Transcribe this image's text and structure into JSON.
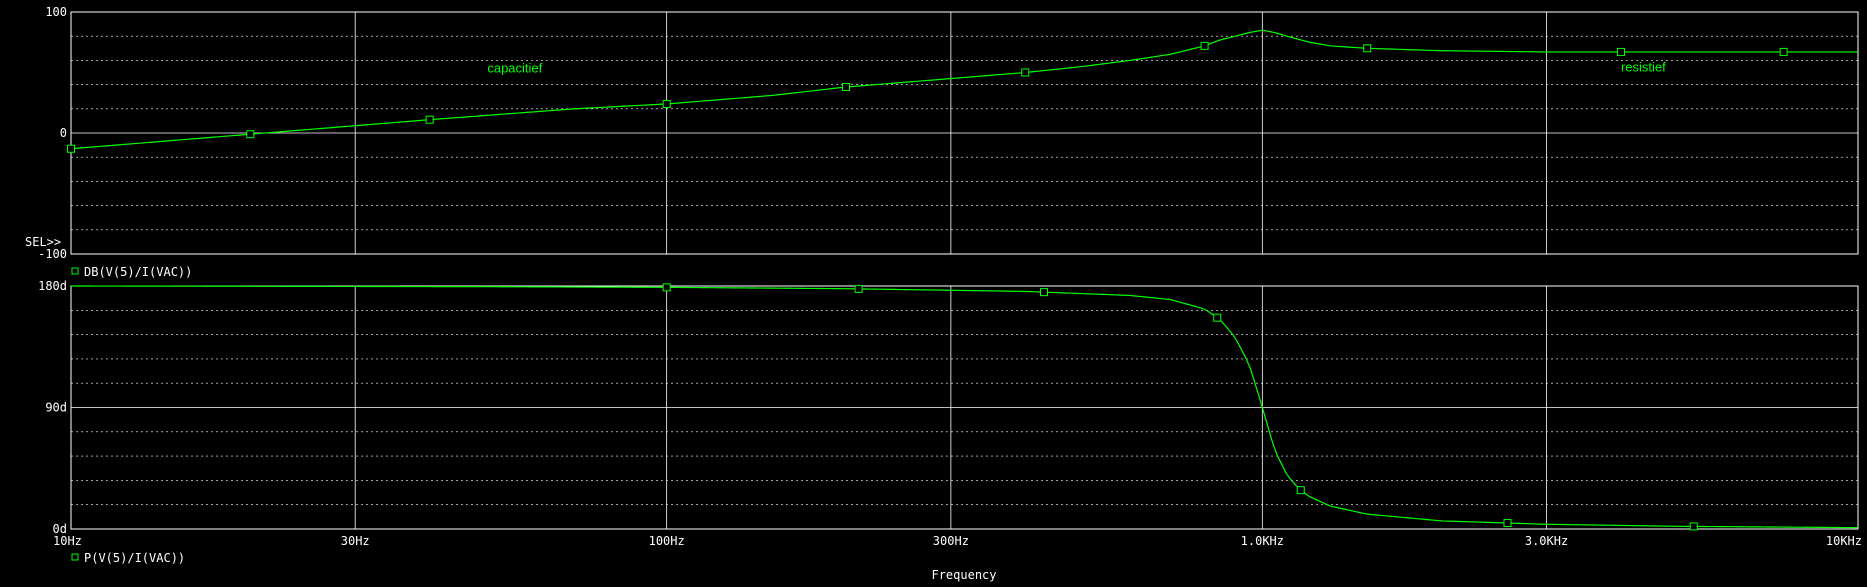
{
  "plot": {
    "sel_marker": "SEL>>",
    "x_axis_title": "Frequency",
    "x_ticks": [
      {
        "value": 10,
        "label": "10Hz"
      },
      {
        "value": 30,
        "label": "30Hz"
      },
      {
        "value": 100,
        "label": "100Hz"
      },
      {
        "value": 300,
        "label": "300Hz"
      },
      {
        "value": 1000,
        "label": "1.0KHz"
      },
      {
        "value": 3000,
        "label": "3.0KHz"
      },
      {
        "value": 10000,
        "label": "10KHz"
      }
    ]
  },
  "colors": {
    "background": "#000000",
    "frame": "#ffffff",
    "grid": "#ffffff",
    "trace": "#00ff00",
    "text": "#ffffff"
  },
  "chart_data": [
    {
      "type": "line",
      "x_scale": "log",
      "xlim": [
        10,
        10000
      ],
      "ylim": [
        -100,
        100
      ],
      "y_ticks": [
        {
          "value": 100,
          "label": "100"
        },
        {
          "value": 0,
          "label": "0"
        },
        {
          "value": -100,
          "label": "-100"
        }
      ],
      "annotations": [
        {
          "text": "capacitief",
          "x": 50,
          "y": 50
        },
        {
          "text": "resistief",
          "x": 4000,
          "y": 51
        }
      ],
      "series": [
        {
          "name": "DB(V(5)/I(VAC))",
          "x": [
            10,
            20,
            40,
            70,
            100,
            150,
            200,
            300,
            400,
            500,
            600,
            700,
            800,
            850,
            900,
            950,
            1000,
            1050,
            1100,
            1200,
            1300,
            1500,
            2000,
            3000,
            5000,
            7000,
            10000
          ],
          "y": [
            -13,
            -1,
            11,
            20,
            24,
            31,
            38,
            45,
            50,
            55,
            60,
            65,
            72,
            77,
            80,
            83,
            85,
            83,
            80,
            75,
            72,
            70,
            68,
            67,
            67,
            67,
            67
          ],
          "markers_x": [
            10,
            20,
            40,
            100,
            200,
            400,
            800,
            1500,
            4000,
            7500
          ]
        }
      ]
    },
    {
      "type": "line",
      "x_scale": "log",
      "xlim": [
        10,
        10000
      ],
      "ylim": [
        0,
        180
      ],
      "y_ticks": [
        {
          "value": 180,
          "label": "180d"
        },
        {
          "value": 90,
          "label": "90d"
        },
        {
          "value": 0,
          "label": "0d"
        }
      ],
      "series": [
        {
          "name": "P(V(5)/I(VAC))",
          "x": [
            10,
            50,
            100,
            200,
            400,
            600,
            700,
            800,
            850,
            900,
            950,
            980,
            1000,
            1020,
            1050,
            1100,
            1150,
            1200,
            1300,
            1500,
            2000,
            3000,
            5000,
            10000
          ],
          "y": [
            180,
            179.5,
            179,
            178,
            176,
            173,
            170,
            163,
            155,
            142,
            122,
            103,
            90,
            77,
            58,
            40,
            30,
            24,
            17,
            11,
            6,
            3.5,
            2,
            1
          ],
          "markers_x": [
            100,
            210,
            430,
            840,
            1160,
            2580,
            5300
          ]
        }
      ]
    }
  ]
}
